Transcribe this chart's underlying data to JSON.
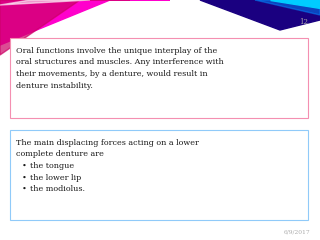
{
  "bg_color": "#ffffff",
  "slide_number": "12",
  "slide_number_color": "#aaaaaa",
  "date_text": "6/9/2017",
  "date_color": "#aaaaaa",
  "box1_border_color": "#f48fb1",
  "box2_border_color": "#90caf9",
  "text_color": "#1a1a1a",
  "box1_text_lines": [
    "Oral functions involve the unique interplay of the",
    "oral structures and muscles. Any interference with",
    "their movements, by a denture, would result in",
    "denture instability."
  ],
  "box2_line1": "The main displacing forces acting on a lower",
  "box2_line2": "complete denture are",
  "box2_bullets": [
    "the tongue",
    "the lower lip",
    "the modiolus."
  ],
  "font_size": 5.8,
  "font_family": "DejaVu Serif"
}
